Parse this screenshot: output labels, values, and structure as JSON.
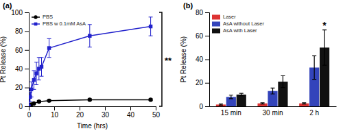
{
  "chart_data": [
    {
      "type": "line",
      "title": "(a)",
      "xlabel": "Time (hrs)",
      "ylabel": "Pt Release (%)",
      "xlim": [
        0,
        50
      ],
      "ylim": [
        0,
        100
      ],
      "xticks": [
        0,
        10,
        20,
        30,
        40,
        50
      ],
      "yticks": [
        0,
        20,
        40,
        60,
        80,
        100
      ],
      "legend": "upper left",
      "series": [
        {
          "name": "PBS",
          "color": "#000000",
          "marker": "circle",
          "x": [
            0,
            0.5,
            1,
            2,
            4,
            8,
            24,
            48
          ],
          "values": [
            0,
            1,
            2,
            3,
            5,
            6,
            7,
            7
          ],
          "yerr": [
            0,
            0.5,
            0.5,
            0.5,
            1,
            1,
            1,
            1
          ]
        },
        {
          "name": "PBS w 0.1mM AsA",
          "color": "#2222cc",
          "marker": "square",
          "x": [
            0,
            0.5,
            1,
            2,
            3,
            4,
            5,
            8,
            24,
            48
          ],
          "values": [
            0,
            10,
            18,
            28,
            35,
            40,
            42,
            62,
            75,
            85
          ],
          "yerr": [
            0,
            5,
            8,
            10,
            12,
            12,
            10,
            10,
            12,
            10
          ]
        }
      ],
      "annotations": [
        "**"
      ]
    },
    {
      "type": "bar",
      "title": "(b)",
      "ylabel": "Pt Release (%)",
      "ylim": [
        0,
        80
      ],
      "yticks": [
        0,
        20,
        40,
        60,
        80
      ],
      "categories": [
        "15 min",
        "30 min",
        "2 h"
      ],
      "legend": "upper left",
      "series": [
        {
          "name": "Laser",
          "color": "#dd3333",
          "values": [
            1.5,
            2.5,
            2.5
          ],
          "yerr": [
            0.5,
            0.5,
            0.5
          ]
        },
        {
          "name": "AsA without Laser",
          "color": "#3344bb",
          "values": [
            8,
            13,
            33
          ],
          "yerr": [
            1.5,
            2.5,
            10
          ]
        },
        {
          "name": "AsA with Laser",
          "color": "#111111",
          "values": [
            10,
            21,
            50
          ],
          "yerr": [
            1,
            5,
            15
          ]
        }
      ],
      "annotations": [
        "*"
      ]
    }
  ]
}
